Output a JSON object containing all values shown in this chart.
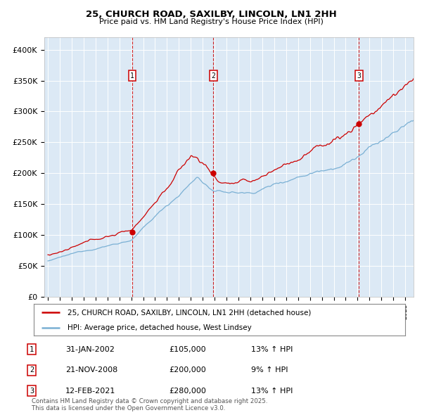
{
  "title": "25, CHURCH ROAD, SAXILBY, LINCOLN, LN1 2HH",
  "subtitle": "Price paid vs. HM Land Registry's House Price Index (HPI)",
  "ylim": [
    0,
    420000
  ],
  "yticks": [
    0,
    50000,
    100000,
    150000,
    200000,
    250000,
    300000,
    350000,
    400000
  ],
  "ytick_labels": [
    "£0",
    "£50K",
    "£100K",
    "£150K",
    "£200K",
    "£250K",
    "£300K",
    "£350K",
    "£400K"
  ],
  "bg_color": "#dce9f5",
  "grid_color": "#ffffff",
  "line_color_red": "#cc0000",
  "line_color_blue": "#7ab0d4",
  "vline_color": "#cc0000",
  "purchase_dates": [
    2002.08,
    2008.9,
    2021.12
  ],
  "purchase_prices": [
    105000,
    200000,
    280000
  ],
  "purchase_labels": [
    "1",
    "2",
    "3"
  ],
  "legend_label_red": "25, CHURCH ROAD, SAXILBY, LINCOLN, LN1 2HH (detached house)",
  "legend_label_blue": "HPI: Average price, detached house, West Lindsey",
  "table_data": [
    [
      "1",
      "31-JAN-2002",
      "£105,000",
      "13% ↑ HPI"
    ],
    [
      "2",
      "21-NOV-2008",
      "£200,000",
      "9% ↑ HPI"
    ],
    [
      "3",
      "12-FEB-2021",
      "£280,000",
      "13% ↑ HPI"
    ]
  ],
  "footer": "Contains HM Land Registry data © Crown copyright and database right 2025.\nThis data is licensed under the Open Government Licence v3.0.",
  "start_year": 1995.0,
  "end_year": 2025.7
}
